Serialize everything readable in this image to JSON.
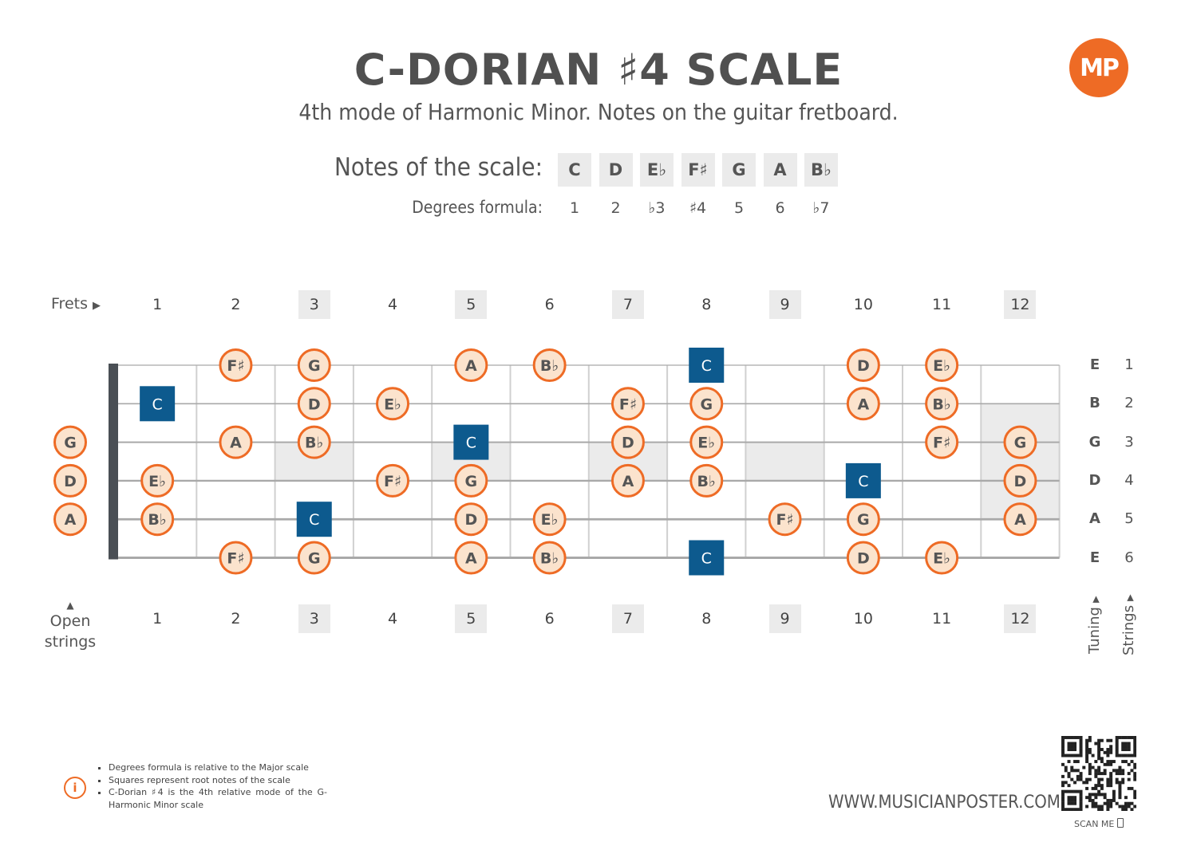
{
  "title": "C-DORIAN ♯4 SCALE",
  "subtitle": "4th mode of Harmonic Minor. Notes on the guitar fretboard.",
  "logo_text": "MP",
  "notes_label": "Notes of the scale:",
  "degrees_label": "Degrees formula:",
  "scale_notes": [
    "C",
    "D",
    "E♭",
    "F♯",
    "G",
    "A",
    "B♭"
  ],
  "degrees": [
    "1",
    "2",
    "♭3",
    "♯4",
    "5",
    "6",
    "♭7"
  ],
  "frets_label": "Frets",
  "fret_numbers": [
    "1",
    "2",
    "3",
    "4",
    "5",
    "6",
    "7",
    "8",
    "9",
    "10",
    "11",
    "12"
  ],
  "marked_frets": [
    3,
    5,
    7,
    9,
    12
  ],
  "open_strings_label_line1": "Open",
  "open_strings_label_line2": "strings",
  "tuning": [
    "E",
    "B",
    "G",
    "D",
    "A",
    "E"
  ],
  "string_numbers": [
    "1",
    "2",
    "3",
    "4",
    "5",
    "6"
  ],
  "tuning_label": "Tuning",
  "strings_label": "Strings",
  "root_note": "C",
  "fretboard": [
    {
      "string": 1,
      "open": null,
      "frets": {
        "2": "F♯",
        "3": "G",
        "5": "A",
        "6": "B♭",
        "8": "C",
        "10": "D",
        "11": "E♭"
      }
    },
    {
      "string": 2,
      "open": null,
      "frets": {
        "1": "C",
        "3": "D",
        "4": "E♭",
        "7": "F♯",
        "8": "G",
        "10": "A",
        "11": "B♭"
      }
    },
    {
      "string": 3,
      "open": "G",
      "frets": {
        "2": "A",
        "3": "B♭",
        "5": "C",
        "7": "D",
        "8": "E♭",
        "11": "F♯",
        "12": "G"
      }
    },
    {
      "string": 4,
      "open": "D",
      "frets": {
        "1": "E♭",
        "4": "F♯",
        "5": "G",
        "7": "A",
        "8": "B♭",
        "10": "C",
        "12": "D"
      }
    },
    {
      "string": 5,
      "open": "A",
      "frets": {
        "1": "B♭",
        "3": "C",
        "5": "D",
        "6": "E♭",
        "9": "F♯",
        "10": "G",
        "12": "A"
      }
    },
    {
      "string": 6,
      "open": null,
      "frets": {
        "2": "F♯",
        "3": "G",
        "5": "A",
        "6": "B♭",
        "8": "C",
        "10": "D",
        "11": "E♭"
      }
    }
  ],
  "footnotes": [
    "Degrees formula is relative to the Major scale",
    "Squares represent root notes of the scale",
    "C-Dorian ♯4 is the 4th relative mode of the G-Harmonic Minor scale"
  ],
  "website": "WWW.MUSICIANPOSTER.COM",
  "scan_me": "SCAN ME",
  "colors": {
    "accent": "#ee6b25",
    "root": "#0d5a8e",
    "circle_fill": "#fbe3cd",
    "text": "#555555",
    "marker": "#ebebeb"
  }
}
